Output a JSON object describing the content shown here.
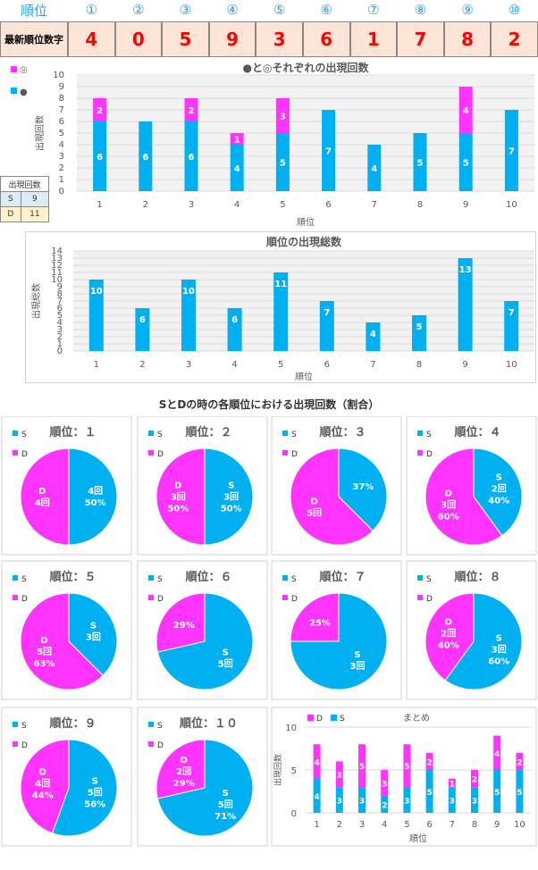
{
  "header": {
    "rank_label": "順位",
    "rank_marks": [
      "①",
      "②",
      "③",
      "④",
      "⑤",
      "⑥",
      "⑦",
      "⑧",
      "⑨",
      "⑩"
    ],
    "latest_label": "最新順位数字",
    "latest_digits": [
      "4",
      "0",
      "5",
      "9",
      "3",
      "6",
      "1",
      "7",
      "8",
      "2"
    ]
  },
  "sd_table": {
    "title": "出現回数",
    "rows": [
      {
        "key": "S",
        "value": "9"
      },
      {
        "key": "D",
        "value": "11"
      }
    ]
  },
  "colors": {
    "s": "#00b0f0",
    "d": "#ff33ff",
    "grid": "#d9d9d9",
    "axis": "#595959",
    "label_bg": "#fce4d6"
  },
  "chart_data": [
    {
      "id": "stacked",
      "type": "bar",
      "title": "●と◎それぞれの出現回数",
      "xlabel": "順位",
      "ylabel": "出現回数",
      "categories": [
        "1",
        "2",
        "3",
        "4",
        "5",
        "6",
        "7",
        "8",
        "9",
        "10"
      ],
      "ylim": [
        0,
        10
      ],
      "yticks": [
        "0",
        "1",
        "2",
        "3",
        "4",
        "5",
        "6",
        "7",
        "8",
        "9",
        "10"
      ],
      "legend": [
        "◎",
        "●"
      ],
      "series": [
        {
          "name": "●",
          "values": [
            6,
            6,
            6,
            4,
            5,
            7,
            4,
            5,
            5,
            7
          ],
          "labels": [
            "6",
            "6",
            "6",
            "4",
            "5",
            "7",
            "4",
            "5",
            "5",
            "7"
          ]
        },
        {
          "name": "◎",
          "values": [
            2,
            0,
            2,
            1,
            3,
            0,
            0,
            0,
            4,
            0
          ],
          "labels": [
            "2",
            "",
            "2",
            "1",
            "3",
            "",
            "",
            "",
            "4",
            ""
          ]
        }
      ]
    },
    {
      "id": "total",
      "type": "bar",
      "title": "順位の出現総数",
      "xlabel": "順位",
      "ylabel": "出現総数",
      "categories": [
        "1",
        "2",
        "3",
        "4",
        "5",
        "6",
        "7",
        "8",
        "9",
        "10"
      ],
      "ylim": [
        0,
        14
      ],
      "yticks": [
        "0",
        "1",
        "2",
        "3",
        "4",
        "5",
        "6",
        "7",
        "8",
        "9",
        "10",
        "11",
        "12",
        "13",
        "14"
      ],
      "series": [
        {
          "values": [
            10,
            6,
            10,
            6,
            11,
            7,
            4,
            5,
            13,
            7
          ],
          "labels": [
            "10",
            "6",
            "10",
            "6",
            "11",
            "7",
            "4",
            "5",
            "13",
            "7"
          ]
        }
      ]
    },
    {
      "id": "pies",
      "type": "pie",
      "title": "SとDの時の各順位における出現回数（割合）",
      "legend": [
        "S",
        "D"
      ],
      "pies": [
        {
          "title": "順位：１",
          "s": 4,
          "d": 4,
          "s_label": [
            "4回",
            "50%"
          ],
          "d_label": [
            "D",
            "4回"
          ]
        },
        {
          "title": "順位：２",
          "s": 3,
          "d": 3,
          "s_label": [
            "S",
            "3回",
            "50%"
          ],
          "d_label": [
            "D",
            "3回",
            "50%"
          ]
        },
        {
          "title": "順位：３",
          "s": 3,
          "d": 5,
          "s_label": [
            "37%"
          ],
          "d_label": [
            "D",
            "5回"
          ]
        },
        {
          "title": "順位：４",
          "s": 2,
          "d": 3,
          "s_label": [
            "S",
            "2回",
            "40%"
          ],
          "d_label": [
            "D",
            "3回",
            "60%"
          ]
        },
        {
          "title": "順位：５",
          "s": 3,
          "d": 5,
          "s_label": [
            "S",
            "3回"
          ],
          "d_label": [
            "D",
            "5回",
            "63%"
          ]
        },
        {
          "title": "順位：６",
          "s": 5,
          "d": 2,
          "s_label": [
            "S",
            "5回"
          ],
          "d_label": [
            "29%"
          ]
        },
        {
          "title": "順位：７",
          "s": 3,
          "d": 1,
          "s_label": [
            "S",
            "3回"
          ],
          "d_label": [
            "25%"
          ]
        },
        {
          "title": "順位：８",
          "s": 3,
          "d": 2,
          "s_label": [
            "S",
            "3回",
            "60%"
          ],
          "d_label": [
            "D",
            "2回",
            "40%"
          ]
        },
        {
          "title": "順位：９",
          "s": 5,
          "d": 4,
          "s_label": [
            "S",
            "5回",
            "56%"
          ],
          "d_label": [
            "D",
            "4回",
            "44%"
          ]
        },
        {
          "title": "順位：１０",
          "s": 5,
          "d": 2,
          "s_label": [
            "S",
            "5回",
            "71%"
          ],
          "d_label": [
            "D",
            "2回",
            "29%"
          ]
        }
      ]
    },
    {
      "id": "summary",
      "type": "bar",
      "title": "まとめ",
      "xlabel": "順位",
      "ylabel": "出現回数",
      "categories": [
        "1",
        "2",
        "3",
        "4",
        "5",
        "6",
        "7",
        "8",
        "9",
        "10"
      ],
      "ylim": [
        0,
        10
      ],
      "yticks": [
        "0",
        "5",
        "10"
      ],
      "legend": [
        "D",
        "S"
      ],
      "series": [
        {
          "name": "S",
          "values": [
            4,
            3,
            3,
            2,
            3,
            5,
            3,
            3,
            5,
            5
          ],
          "labels": [
            "4",
            "3",
            "3",
            "2",
            "3",
            "5",
            "3",
            "3",
            "5",
            "5"
          ]
        },
        {
          "name": "D",
          "values": [
            4,
            3,
            5,
            3,
            5,
            2,
            1,
            2,
            4,
            2
          ],
          "labels": [
            "4",
            "3",
            "5",
            "3",
            "5",
            "2",
            "1",
            "2",
            "4",
            "2"
          ]
        }
      ]
    }
  ]
}
